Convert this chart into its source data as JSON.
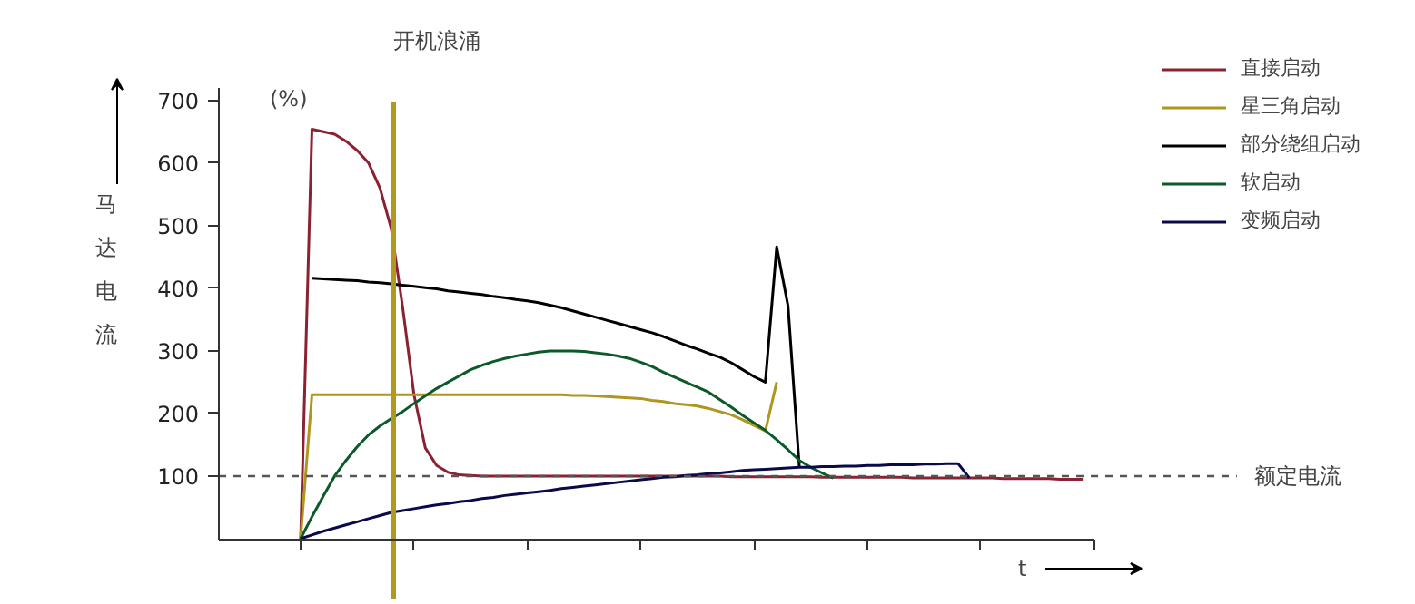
{
  "chart_data": {
    "type": "line",
    "ylabel": "马达电流",
    "xlabel": "t",
    "annotations": [
      "(%)",
      "开机浪涌"
    ],
    "categories": [
      null,
      null,
      null,
      null,
      null,
      null,
      null,
      null,
      null,
      null,
      null,
      null,
      null,
      null,
      null,
      null,
      null,
      null,
      null,
      null,
      null,
      null,
      null,
      null,
      null,
      null,
      null,
      null,
      null,
      null,
      null,
      null,
      null,
      null,
      null,
      null,
      null,
      null,
      null,
      null,
      null,
      null,
      null,
      null,
      null,
      null,
      null,
      null,
      null,
      null,
      null,
      null,
      null,
      null,
      null,
      null,
      null,
      null,
      null,
      null,
      null,
      null,
      null,
      null,
      null,
      null,
      null,
      null,
      null,
      null
    ],
    "ylim": [
      0,
      720
    ],
    "yticks": [
      100,
      200,
      300,
      400,
      500,
      600,
      700
    ],
    "tick_labels": "y",
    "legend": "top right",
    "line_style": "solid",
    "series": [
      {
        "name": "直接启动",
        "color": "#8b2232",
        "values": [
          0,
          654,
          650,
          646,
          635,
          620,
          600,
          560,
          495,
          370,
          230,
          145,
          117,
          106,
          102,
          101,
          100,
          100,
          100,
          100,
          100,
          100,
          100,
          100,
          100,
          100,
          100,
          100,
          100,
          100,
          100,
          100,
          100,
          100,
          100,
          100,
          100,
          100,
          99,
          99,
          99,
          99,
          99,
          99,
          99,
          99,
          98,
          98,
          98,
          98,
          98,
          98,
          98,
          98,
          97,
          97,
          97,
          97,
          97,
          97,
          97,
          97,
          96,
          96,
          96,
          96,
          96,
          95,
          95,
          95
        ]
      },
      {
        "name": "星三角启动",
        "color": "#b0961e",
        "values": [
          0,
          230,
          230,
          230,
          230,
          230,
          230,
          230,
          230,
          230,
          230,
          230,
          230,
          230,
          230,
          230,
          230,
          230,
          230,
          230,
          230,
          230,
          230,
          230,
          229,
          229,
          228,
          227,
          226,
          225,
          224,
          221,
          219,
          216,
          214,
          212,
          208,
          203,
          198,
          190,
          181,
          172,
          250,
          null,
          null,
          null,
          null,
          null,
          null,
          null,
          null,
          null,
          null,
          null,
          null,
          null,
          null,
          null,
          null,
          null,
          null,
          null,
          null,
          null,
          null,
          null,
          null,
          null,
          null,
          null
        ]
      },
      {
        "name": "部分绕组启动",
        "color": "#000000",
        "values": [
          null,
          416,
          415,
          414,
          413,
          412,
          410,
          409,
          407,
          405,
          403,
          401,
          399,
          396,
          394,
          392,
          390,
          387,
          385,
          382,
          380,
          377,
          373,
          369,
          364,
          359,
          354,
          349,
          344,
          339,
          334,
          329,
          323,
          316,
          309,
          303,
          296,
          290,
          281,
          270,
          259,
          250,
          466,
          372,
          114,
          null,
          null,
          null,
          null,
          null,
          null,
          null,
          null,
          null,
          null,
          null,
          null,
          null,
          null,
          null,
          null,
          null,
          null,
          null,
          null,
          null,
          null,
          null,
          null,
          null
        ]
      },
      {
        "name": "软启动",
        "color": "#0b5a2a",
        "values": [
          0,
          35,
          68,
          100,
          125,
          147,
          166,
          180,
          192,
          203,
          216,
          228,
          240,
          250,
          260,
          270,
          277,
          283,
          288,
          292,
          295,
          298,
          300,
          300,
          300,
          299,
          297,
          295,
          292,
          288,
          282,
          275,
          266,
          258,
          250,
          242,
          234,
          222,
          210,
          197,
          185,
          173,
          158,
          142,
          125,
          114,
          105,
          97,
          null,
          null,
          null,
          null,
          null,
          null,
          null,
          null,
          null,
          null,
          null,
          null,
          null,
          null,
          null,
          null,
          null,
          null,
          null,
          null,
          null,
          null
        ]
      },
      {
        "name": "变频启动",
        "color": "#0a0a4a",
        "values": [
          0,
          6,
          12,
          17,
          22,
          27,
          32,
          37,
          42,
          45,
          48,
          51,
          54,
          56,
          59,
          61,
          64,
          66,
          69,
          71,
          73,
          75,
          77,
          80,
          82,
          84,
          86,
          88,
          90,
          92,
          94,
          96,
          98,
          99,
          101,
          102,
          104,
          105,
          107,
          109,
          110,
          111,
          112,
          113,
          114,
          114,
          115,
          115,
          116,
          116,
          117,
          117,
          118,
          118,
          118,
          119,
          119,
          120,
          120,
          97,
          null,
          null,
          null,
          null,
          null,
          null,
          null,
          null,
          null,
          null
        ]
      }
    ],
    "ref_lines": [
      {
        "axis": "y",
        "value": 100,
        "label": "额定电流",
        "color": "#555555",
        "line_style": "dashed"
      }
    ]
  }
}
